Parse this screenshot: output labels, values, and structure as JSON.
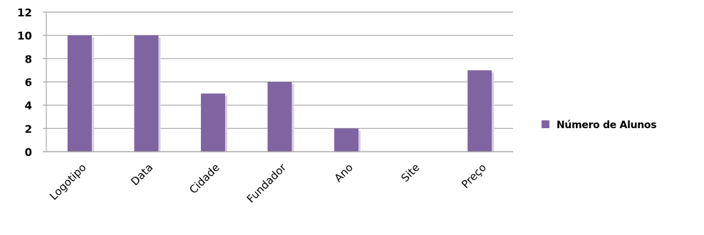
{
  "chart_data": {
    "type": "bar",
    "categories": [
      "Logotipo",
      "Data",
      "Cidade",
      "Fundador",
      "Ano",
      "Site",
      "Preço"
    ],
    "series": [
      {
        "name": "Número de Alunos",
        "values": [
          10,
          10,
          5,
          6,
          2,
          0,
          7
        ],
        "color": "#8064a2"
      }
    ],
    "ylim": [
      0,
      12
    ],
    "yticks": [
      0,
      2,
      4,
      6,
      8,
      10,
      12
    ],
    "grid": true,
    "legend_position": "right",
    "colors": {
      "bar": "#8064a2",
      "bar_shadow": "#d9cde6",
      "grid": "#a6a6a6"
    }
  }
}
